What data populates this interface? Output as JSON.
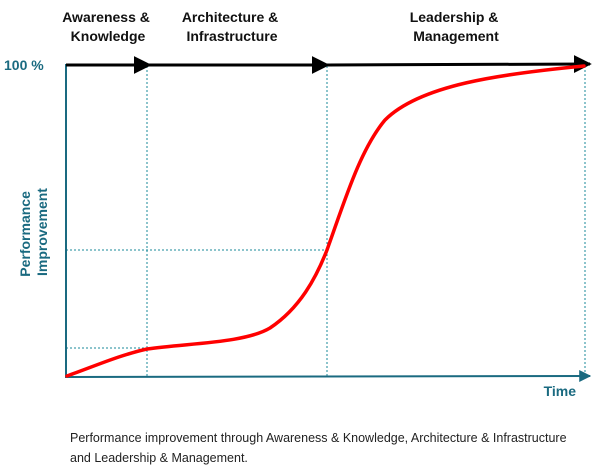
{
  "phases": [
    {
      "line1": "Awareness &",
      "line2": "Knowledge"
    },
    {
      "line1": "Architecture &",
      "line2": "Infrastructure"
    },
    {
      "line1": "Leadership &",
      "line2": "Management"
    }
  ],
  "y_axis": {
    "top_label": "100 %",
    "title_line1": "Performance",
    "title_line2": "Improvement"
  },
  "x_axis": {
    "title": "Time"
  },
  "caption": "Performance improvement through Awareness & Knowledge, Architecture & Infrastructure and Leadership & Management.",
  "colors": {
    "curve": "#ff0000",
    "axis": "#1a6a80",
    "arrow": "#000000",
    "guide": "#1a8a9a"
  }
}
